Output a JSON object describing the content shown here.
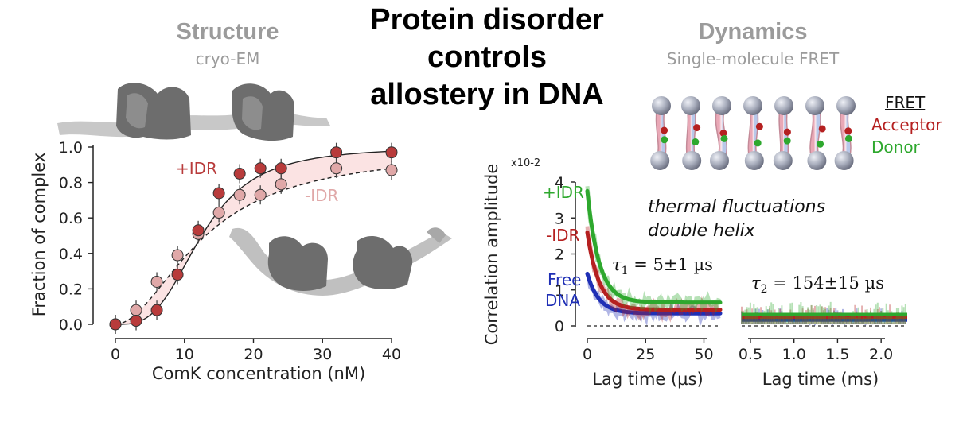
{
  "title_lines": [
    "Protein disorder",
    "controls",
    "allostery in DNA"
  ],
  "left_panel": {
    "heading": "Structure",
    "subheading": "cryo-EM"
  },
  "right_panel": {
    "heading": "Dynamics",
    "subheading": "Single-molecule FRET"
  },
  "fret_legend": {
    "title": "FRET",
    "acceptor": "Acceptor",
    "donor": "Donor"
  },
  "annotation": {
    "line1": "thermal fluctuations",
    "line2": "double helix"
  },
  "colors": {
    "plus_idr": "#b83b3b",
    "minus_idr": "#e0a8a8",
    "band": "#fbe3e3",
    "free": "#1f3fb0",
    "green": "#2ea82e",
    "red": "#b52020",
    "blue": "#1f2fb5"
  },
  "chart_data": [
    {
      "type": "scatter",
      "xlabel": "ComK concentration (nM)",
      "ylabel": "Fraction of complex",
      "xlim": [
        0,
        40
      ],
      "ylim": [
        0,
        1.0
      ],
      "xticks": [
        "0",
        "10",
        "20",
        "30",
        "40"
      ],
      "yticks": [
        "0.0",
        "0.2",
        "0.4",
        "0.6",
        "0.8",
        "1.0"
      ],
      "grid": false,
      "series": [
        {
          "name": "+IDR",
          "x": [
            0,
            3,
            6,
            9,
            12,
            15,
            18,
            21,
            24,
            32,
            40
          ],
          "y": [
            0.0,
            0.02,
            0.08,
            0.28,
            0.53,
            0.74,
            0.85,
            0.88,
            0.88,
            0.97,
            0.97
          ]
        },
        {
          "name": "-IDR",
          "x": [
            0,
            3,
            6,
            9,
            12,
            15,
            18,
            21,
            24,
            32,
            40
          ],
          "y": [
            0.0,
            0.08,
            0.24,
            0.39,
            0.51,
            0.63,
            0.73,
            0.73,
            0.79,
            0.88,
            0.87
          ]
        }
      ]
    },
    {
      "type": "line",
      "xlabel": "Lag time (µs)",
      "ylabel": "Correlation amplitude",
      "y_scale_label": "x10-2",
      "xlim": [
        0,
        57
      ],
      "ylim": [
        0,
        4
      ],
      "xticks": [
        "0",
        "25",
        "50"
      ],
      "yticks": [
        "0",
        "1",
        "2",
        "3",
        "4"
      ],
      "annotation": {
        "symbol": "τ",
        "sub": "1",
        "text": " = 5±1 µs"
      },
      "series": [
        {
          "name": "+IDR",
          "color": "green",
          "amplitude0": 3.75,
          "plateau": 0.65,
          "tau": 5
        },
        {
          "name": "-IDR",
          "color": "red",
          "amplitude0": 2.6,
          "plateau": 0.45,
          "tau": 5
        },
        {
          "name": "Free DNA",
          "color": "blue",
          "amplitude0": 1.45,
          "plateau": 0.35,
          "tau": 5
        }
      ]
    },
    {
      "type": "line",
      "xlabel": "Lag time (ms)",
      "xlim": [
        0.4,
        2.3
      ],
      "ylim": [
        0,
        4
      ],
      "xticks": [
        "0.5",
        "1.0",
        "1.5",
        "2.0"
      ],
      "annotation": {
        "symbol": "τ",
        "sub": "2",
        "text": " = 154±15 µs"
      },
      "series": [
        {
          "name": "+IDR",
          "color": "green",
          "plateau": 0.32
        },
        {
          "name": "-IDR",
          "color": "red",
          "plateau": 0.24
        },
        {
          "name": "Free DNA",
          "color": "blue",
          "plateau": 0.16
        }
      ]
    }
  ]
}
